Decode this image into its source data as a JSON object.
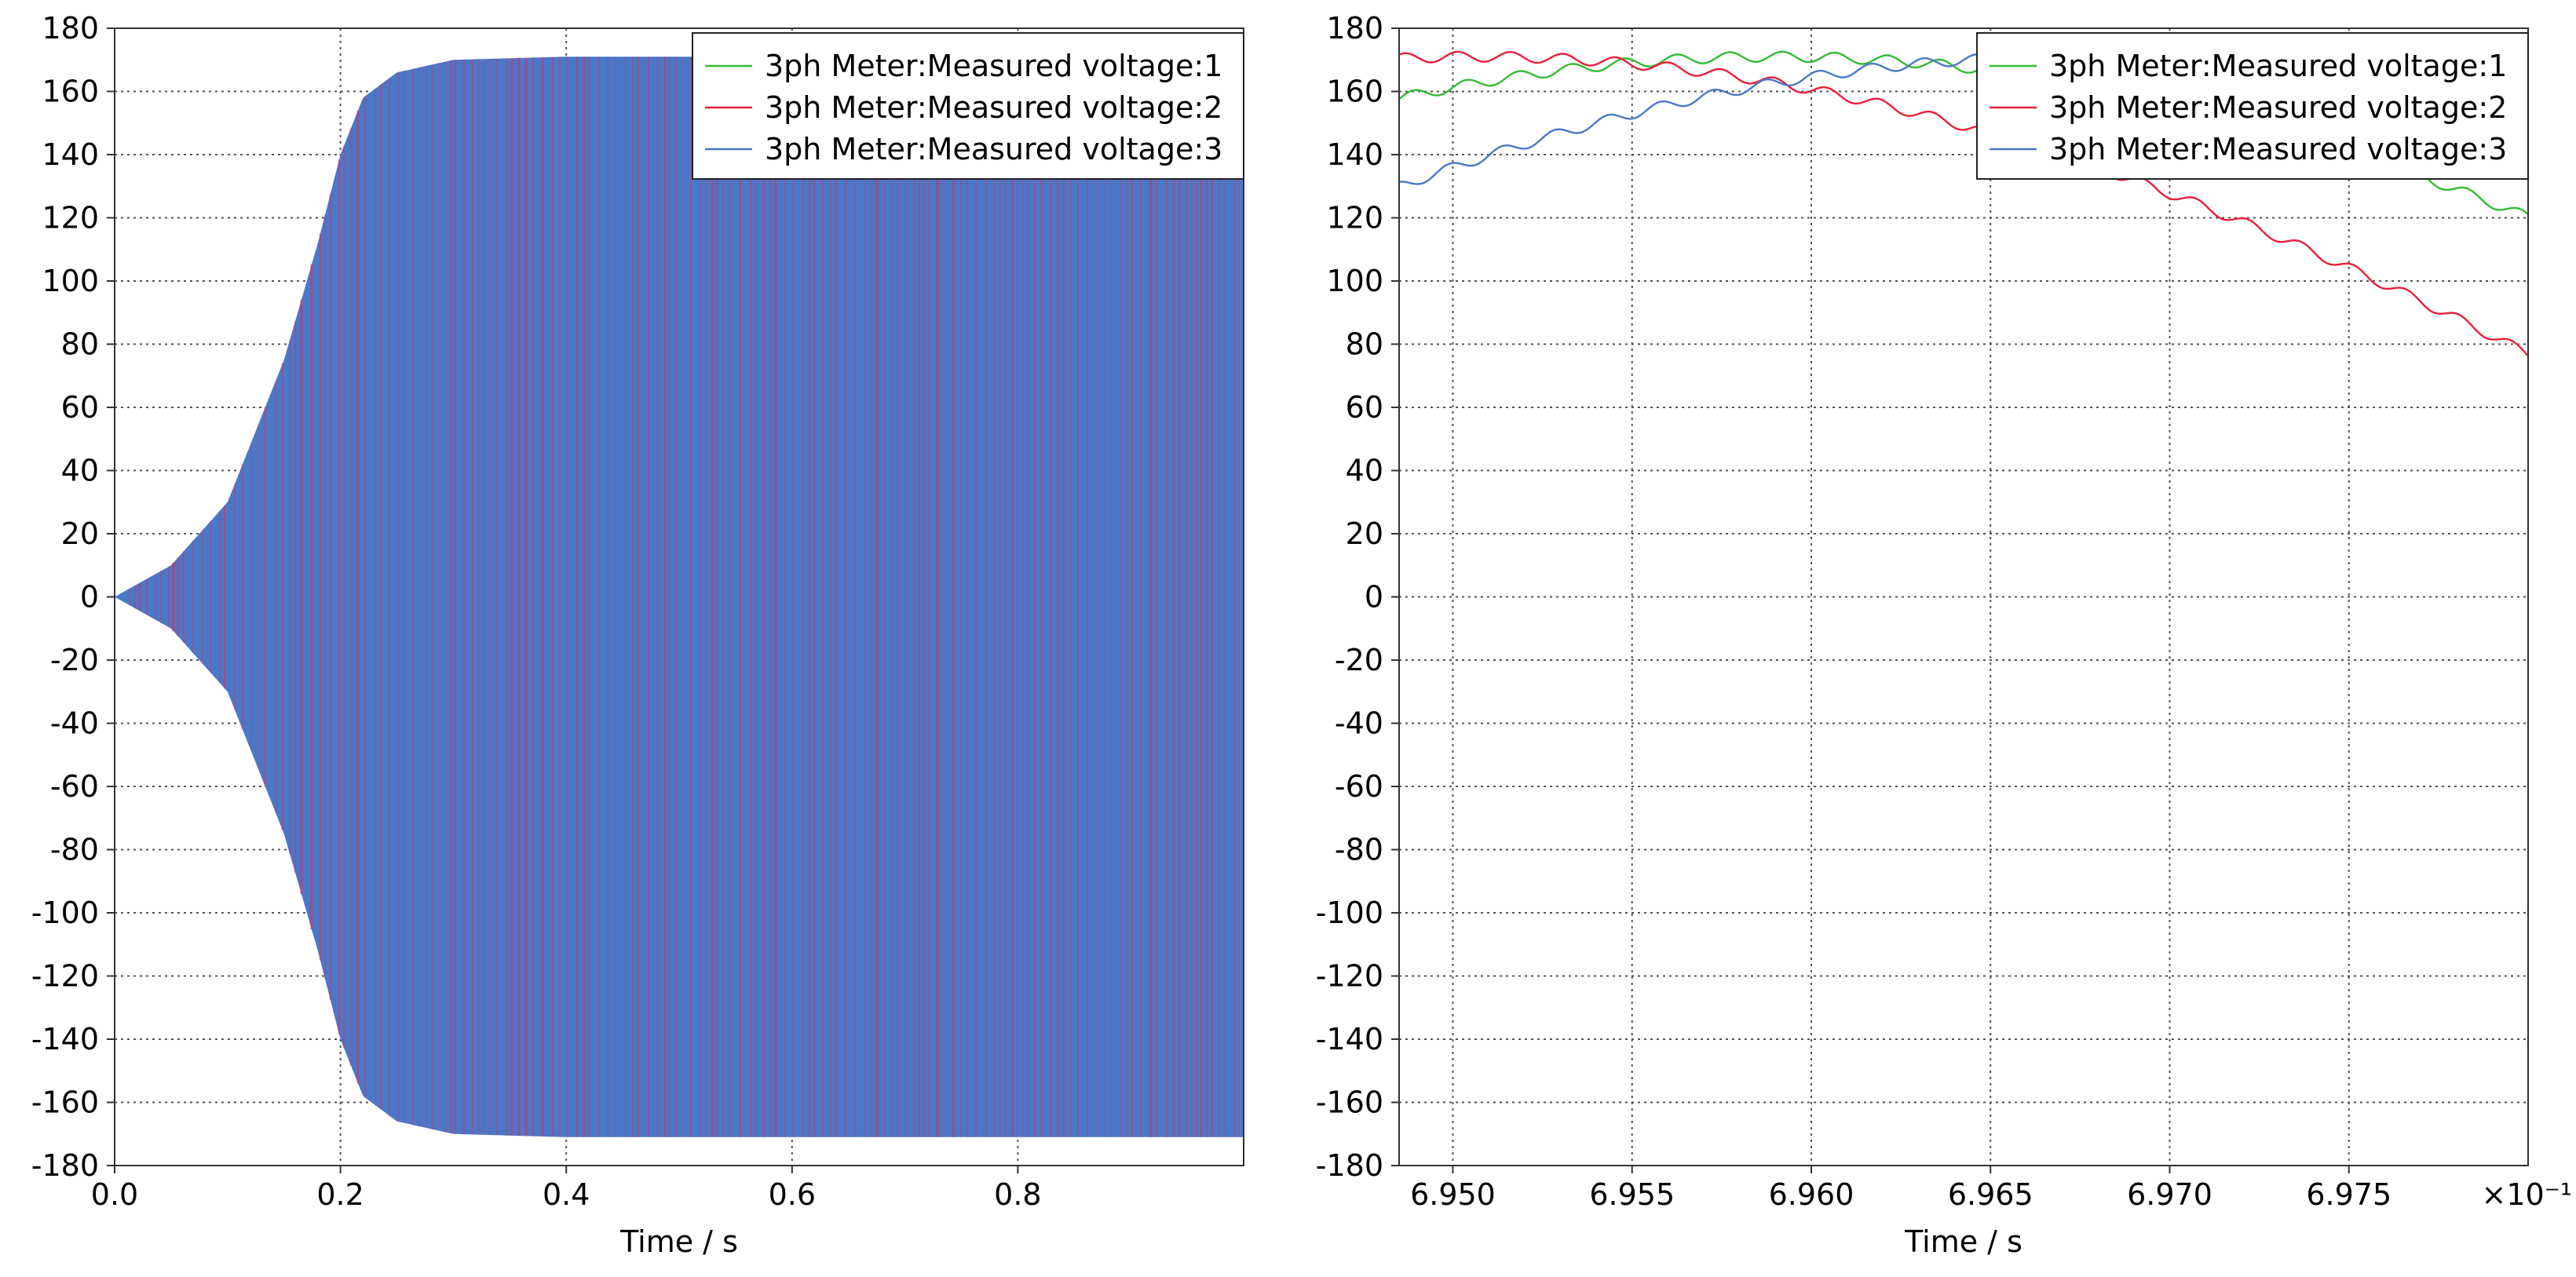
{
  "chart_data": [
    {
      "type": "line",
      "xlabel": "Time / s",
      "ylabel": "",
      "xlim": [
        0,
        1.0
      ],
      "ylim": [
        -180,
        180
      ],
      "x_ticks": [
        "0.0",
        "0.2",
        "0.4",
        "0.6",
        "0.8"
      ],
      "x_tick_values": [
        0.0,
        0.2,
        0.4,
        0.6,
        0.8
      ],
      "y_ticks": [
        "180",
        "160",
        "140",
        "120",
        "100",
        "80",
        "60",
        "40",
        "20",
        "0",
        "-20",
        "-40",
        "-60",
        "-80",
        "-100",
        "-120",
        "-140",
        "-160",
        "-180"
      ],
      "y_tick_values": [
        180,
        160,
        140,
        120,
        100,
        80,
        60,
        40,
        20,
        0,
        -20,
        -40,
        -60,
        -80,
        -100,
        -120,
        -140,
        -160,
        -180
      ],
      "grid": true,
      "legend_position": "top-right",
      "envelope": {
        "description_points_t": [
          0.0,
          0.05,
          0.1,
          0.15,
          0.18,
          0.2,
          0.22,
          0.25,
          0.3,
          0.4,
          1.0
        ],
        "amplitude": [
          0,
          10,
          30,
          75,
          112,
          140,
          158,
          166,
          170,
          171,
          171
        ]
      },
      "series": [
        {
          "name": "3ph Meter:Measured voltage:1",
          "color": "#33bb33",
          "amplitude": 171
        },
        {
          "name": "3ph Meter:Measured voltage:2",
          "color": "#e8203a",
          "amplitude": 171
        },
        {
          "name": "3ph Meter:Measured voltage:3",
          "color": "#4a78c8",
          "amplitude": 171
        }
      ]
    },
    {
      "type": "line",
      "xlabel": "Time / s",
      "ylabel": "",
      "xlim": [
        0.69485,
        0.698
      ],
      "x_multiplier": "×10⁻¹",
      "ylim": [
        -180,
        180
      ],
      "x_ticks": [
        "6.950",
        "6.955",
        "6.960",
        "6.965",
        "6.970",
        "6.975"
      ],
      "x_tick_values": [
        0.695,
        0.6955,
        0.696,
        0.6965,
        0.697,
        0.6975
      ],
      "y_ticks": [
        "180",
        "160",
        "140",
        "120",
        "100",
        "80",
        "60",
        "40",
        "20",
        "0",
        "-20",
        "-40",
        "-60",
        "-80",
        "-100",
        "-120",
        "-140",
        "-160",
        "-180"
      ],
      "y_tick_values": [
        180,
        160,
        140,
        120,
        100,
        80,
        60,
        40,
        20,
        0,
        -20,
        -40,
        -60,
        -80,
        -100,
        -120,
        -140,
        -160,
        -180
      ],
      "grid": true,
      "legend_position": "top-right",
      "frequency_hz": 60,
      "series": [
        {
          "name": "3ph Meter:Measured voltage:1",
          "color": "#33bb33",
          "amplitude": 171,
          "peak_time": 0.6959
        },
        {
          "name": "3ph Meter:Measured voltage:2",
          "color": "#e8203a",
          "amplitude": 171,
          "peak_time": 0.69507
        },
        {
          "name": "3ph Meter:Measured voltage:3",
          "color": "#4a78c8",
          "amplitude": 171,
          "peak_time": 0.69673
        }
      ]
    }
  ]
}
